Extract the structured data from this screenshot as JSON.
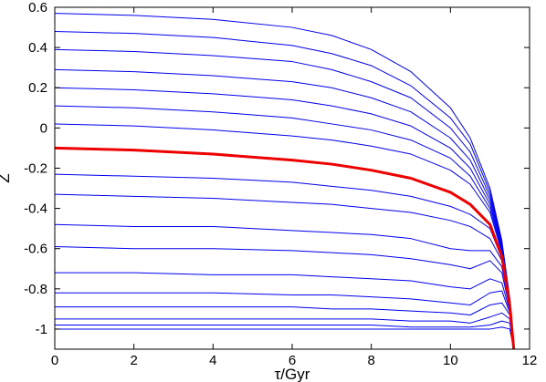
{
  "chart_data": {
    "type": "line",
    "xlabel": "τ/Gyr",
    "ylabel": "Z",
    "xlim": [
      0,
      12
    ],
    "ylim": [
      -1.1,
      0.6
    ],
    "x_ticks": [
      0,
      2,
      4,
      6,
      8,
      10,
      12
    ],
    "x_tick_labels": [
      "0",
      "2",
      "4",
      "6",
      "8",
      "10",
      "12"
    ],
    "y_ticks": [
      0.6,
      0.4,
      0.2,
      0,
      -0.2,
      -0.4,
      -0.6,
      -0.8,
      -1
    ],
    "y_tick_labels": [
      "0.6",
      "0.4",
      "0.2",
      "0",
      "-0.2",
      "-0.4",
      "-0.6",
      "-0.8",
      "-1"
    ],
    "colors": {
      "curves": "#0000ee",
      "highlight": "#ee0000"
    },
    "series": [
      {
        "x": [
          0,
          2,
          4,
          6,
          7,
          8,
          9,
          10,
          10.5,
          11,
          11.3,
          11.5,
          11.6
        ],
        "y": [
          0.57,
          0.56,
          0.54,
          0.5,
          0.46,
          0.39,
          0.28,
          0.1,
          -0.05,
          -0.3,
          -0.56,
          -0.85,
          -1.1
        ]
      },
      {
        "x": [
          0,
          2,
          4,
          6,
          7,
          8,
          9,
          10,
          10.5,
          11,
          11.3,
          11.5,
          11.6
        ],
        "y": [
          0.48,
          0.47,
          0.45,
          0.41,
          0.37,
          0.31,
          0.21,
          0.05,
          -0.08,
          -0.32,
          -0.57,
          -0.85,
          -1.1
        ]
      },
      {
        "x": [
          0,
          2,
          4,
          6,
          7,
          8,
          9,
          10,
          10.5,
          11,
          11.3,
          11.5,
          11.6
        ],
        "y": [
          0.39,
          0.38,
          0.36,
          0.33,
          0.29,
          0.23,
          0.15,
          0.0,
          -0.12,
          -0.34,
          -0.58,
          -0.86,
          -1.1
        ]
      },
      {
        "x": [
          0,
          2,
          4,
          6,
          7,
          8,
          9,
          10,
          10.5,
          11,
          11.3,
          11.5,
          11.6
        ],
        "y": [
          0.29,
          0.28,
          0.26,
          0.23,
          0.2,
          0.15,
          0.08,
          -0.05,
          -0.16,
          -0.36,
          -0.59,
          -0.86,
          -1.1
        ]
      },
      {
        "x": [
          0,
          2,
          4,
          6,
          7,
          8,
          9,
          10,
          10.5,
          11,
          11.3,
          11.5,
          11.6
        ],
        "y": [
          0.2,
          0.19,
          0.17,
          0.14,
          0.11,
          0.07,
          0.01,
          -0.1,
          -0.2,
          -0.38,
          -0.6,
          -0.86,
          -1.1
        ]
      },
      {
        "x": [
          0,
          2,
          4,
          6,
          7,
          8,
          9,
          10,
          10.5,
          11,
          11.3,
          11.5,
          11.6
        ],
        "y": [
          0.11,
          0.1,
          0.08,
          0.05,
          0.02,
          -0.01,
          -0.06,
          -0.15,
          -0.24,
          -0.4,
          -0.61,
          -0.87,
          -1.1
        ]
      },
      {
        "x": [
          0,
          2,
          4,
          6,
          7,
          8,
          9,
          10,
          10.5,
          11,
          11.3,
          11.5,
          11.6
        ],
        "y": [
          0.02,
          0.01,
          -0.01,
          -0.04,
          -0.06,
          -0.09,
          -0.13,
          -0.21,
          -0.28,
          -0.42,
          -0.62,
          -0.87,
          -1.1
        ]
      },
      {
        "x": [
          0,
          2,
          4,
          6,
          7,
          8,
          9,
          10,
          10.5,
          11,
          11.3,
          11.5,
          11.6
        ],
        "y": [
          -0.1,
          -0.11,
          -0.13,
          -0.16,
          -0.18,
          -0.21,
          -0.25,
          -0.32,
          -0.38,
          -0.48,
          -0.64,
          -0.88,
          -1.1
        ]
      },
      {
        "x": [
          0,
          2,
          4,
          6,
          7,
          8,
          9,
          10,
          10.5,
          11,
          11.3,
          11.5,
          11.6
        ],
        "y": [
          -0.23,
          -0.24,
          -0.25,
          -0.27,
          -0.29,
          -0.31,
          -0.34,
          -0.39,
          -0.43,
          -0.5,
          -0.65,
          -0.88,
          -1.1
        ]
      },
      {
        "x": [
          0,
          2,
          4,
          6,
          7,
          8,
          9,
          10,
          10.5,
          11,
          11.3,
          11.5,
          11.6
        ],
        "y": [
          -0.33,
          -0.34,
          -0.35,
          -0.37,
          -0.38,
          -0.4,
          -0.42,
          -0.46,
          -0.49,
          -0.55,
          -0.66,
          -0.89,
          -1.1
        ]
      },
      {
        "x": [
          0,
          2,
          4,
          6,
          7,
          8,
          9,
          10,
          10.5,
          11,
          11.3,
          11.5,
          11.6
        ],
        "y": [
          -0.48,
          -0.49,
          -0.49,
          -0.51,
          -0.52,
          -0.53,
          -0.55,
          -0.6,
          -0.61,
          -0.61,
          -0.69,
          -0.89,
          -1.1
        ]
      },
      {
        "x": [
          0,
          2,
          4,
          6,
          7,
          8,
          9,
          10,
          10.5,
          11,
          11.3,
          11.5,
          11.6
        ],
        "y": [
          -0.59,
          -0.6,
          -0.6,
          -0.61,
          -0.62,
          -0.63,
          -0.65,
          -0.68,
          -0.7,
          -0.66,
          -0.72,
          -0.9,
          -1.1
        ]
      },
      {
        "x": [
          0,
          2,
          4,
          6,
          7,
          8,
          9,
          10,
          10.5,
          11,
          11.3,
          11.5,
          11.6
        ],
        "y": [
          -0.72,
          -0.72,
          -0.73,
          -0.73,
          -0.74,
          -0.75,
          -0.76,
          -0.79,
          -0.8,
          -0.75,
          -0.77,
          -0.91,
          -1.1
        ]
      },
      {
        "x": [
          0,
          2,
          4,
          6,
          7,
          8,
          9,
          10,
          10.5,
          11,
          11.3,
          11.5,
          11.6
        ],
        "y": [
          -0.82,
          -0.82,
          -0.82,
          -0.83,
          -0.83,
          -0.84,
          -0.85,
          -0.87,
          -0.88,
          -0.82,
          -0.81,
          -0.92,
          -1.1
        ]
      },
      {
        "x": [
          0,
          2,
          4,
          6,
          7,
          8,
          9,
          10,
          10.5,
          11,
          11.3,
          11.5,
          11.6
        ],
        "y": [
          -0.89,
          -0.89,
          -0.89,
          -0.89,
          -0.9,
          -0.9,
          -0.91,
          -0.92,
          -0.93,
          -0.88,
          -0.87,
          -0.93,
          -1.1
        ]
      },
      {
        "x": [
          0,
          2,
          4,
          6,
          7,
          8,
          9,
          10,
          10.5,
          11,
          11.3,
          11.5,
          11.6
        ],
        "y": [
          -0.95,
          -0.95,
          -0.95,
          -0.95,
          -0.95,
          -0.95,
          -0.96,
          -0.96,
          -0.97,
          -0.94,
          -0.92,
          -0.95,
          -1.1
        ]
      },
      {
        "x": [
          0,
          2,
          4,
          6,
          7,
          8,
          9,
          10,
          10.5,
          11,
          11.3,
          11.5,
          11.6
        ],
        "y": [
          -0.98,
          -0.98,
          -0.98,
          -0.98,
          -0.98,
          -0.98,
          -0.99,
          -0.99,
          -0.99,
          -0.98,
          -0.96,
          -0.97,
          -1.1
        ]
      },
      {
        "x": [
          0,
          2,
          4,
          6,
          7,
          8,
          9,
          10,
          10.5,
          11,
          11.3,
          11.5,
          11.6
        ],
        "y": [
          -1.0,
          -1.0,
          -1.0,
          -1.0,
          -1.0,
          -1.0,
          -1.0,
          -1.0,
          -1.0,
          -1.0,
          -0.99,
          -1.0,
          -1.1
        ]
      }
    ],
    "highlight_series_index": 7
  }
}
